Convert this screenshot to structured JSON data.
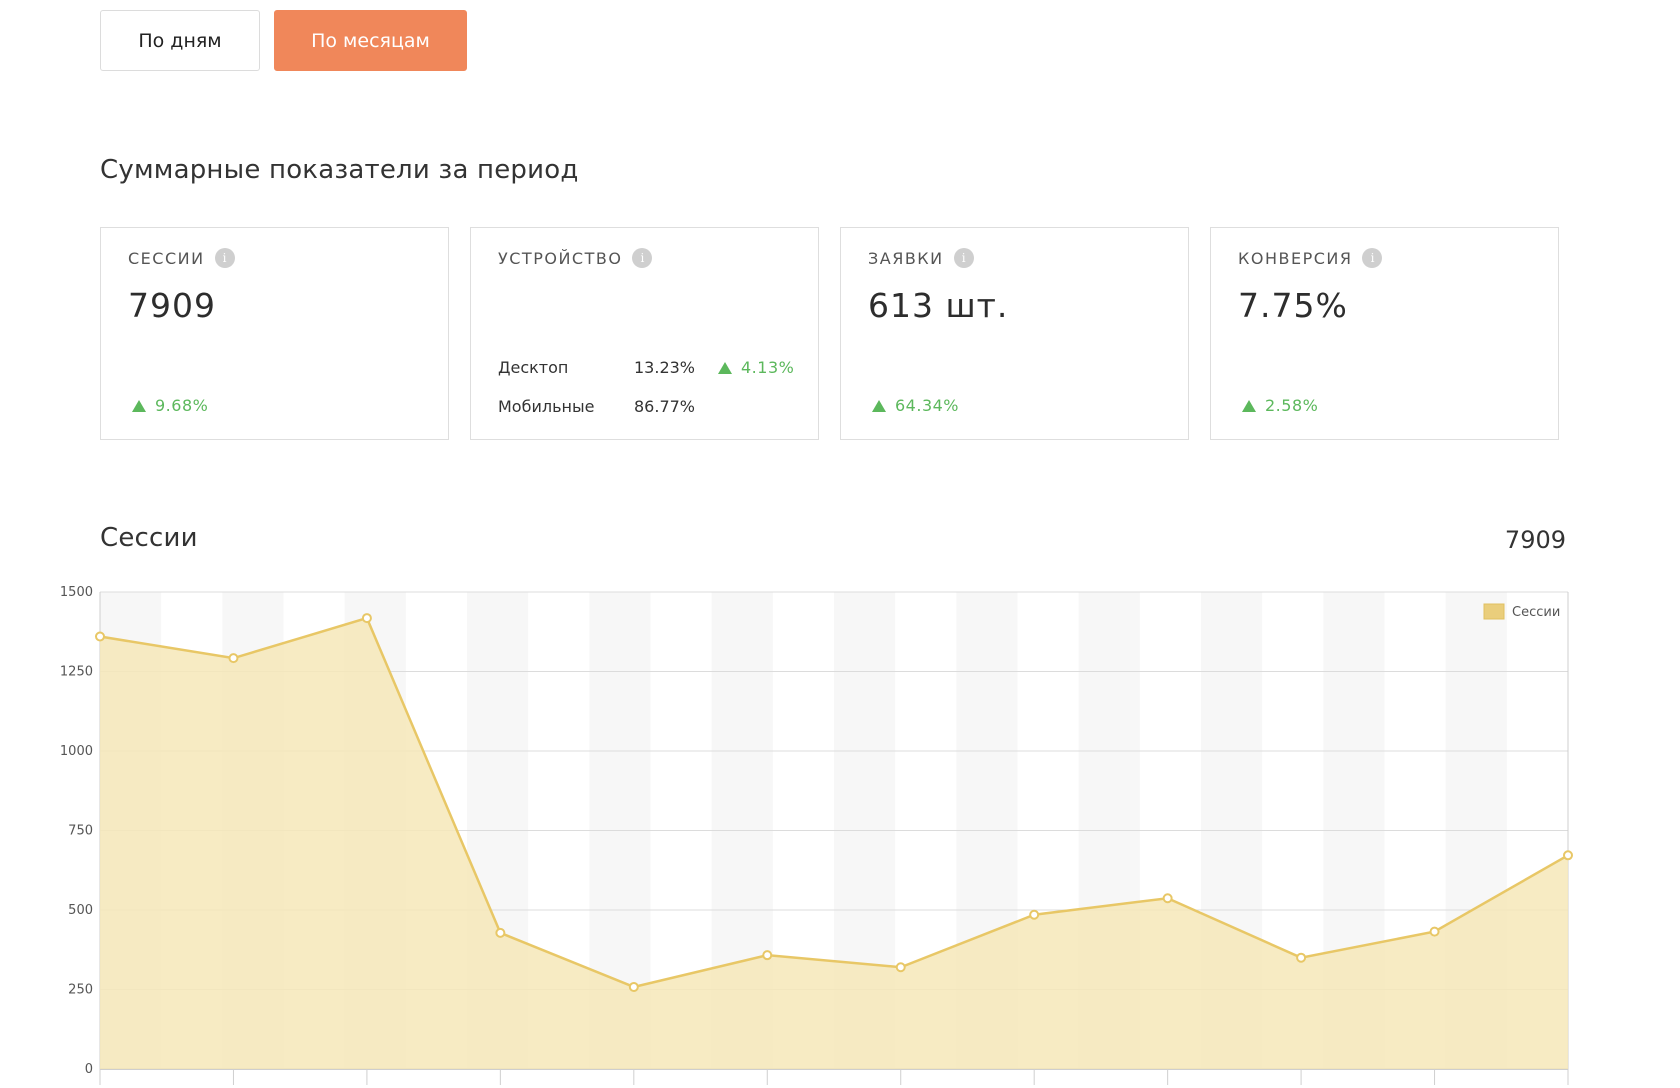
{
  "toolbar": {
    "days_label": "По дням",
    "months_label": "По месяцам"
  },
  "summary": {
    "title": "Суммарные показатели за период",
    "cards": [
      {
        "title": "СЕССИИ",
        "value": "7909",
        "change": "9.68%"
      },
      {
        "title": "УСТРОЙСТВО",
        "rows": [
          {
            "label": "Десктоп",
            "value": "13.23%",
            "change": "4.13%"
          },
          {
            "label": "Мобильные",
            "value": "86.77%"
          }
        ]
      },
      {
        "title": "ЗАЯВКИ",
        "value": "613 шт.",
        "change": "64.34%"
      },
      {
        "title": "КОНВЕРСИЯ",
        "value": "7.75%",
        "change": "2.58%"
      }
    ]
  },
  "chart_section": {
    "title": "Сессии",
    "total": "7909"
  },
  "colors": {
    "accent": "#f0875a",
    "positive": "#5cb85c",
    "series_line": "#e8c766",
    "series_fill": "#f6e7b8"
  },
  "chart_data": {
    "type": "area",
    "ylim": [
      0,
      1500
    ],
    "yticks": [
      0,
      250,
      500,
      750,
      1000,
      1250,
      1500
    ],
    "grid": true,
    "legend_position": "top-right",
    "series": [
      {
        "name": "Сессии",
        "values": [
          1360,
          1292,
          1418,
          428,
          258,
          358,
          320,
          485,
          537,
          350,
          432,
          672
        ]
      }
    ]
  }
}
